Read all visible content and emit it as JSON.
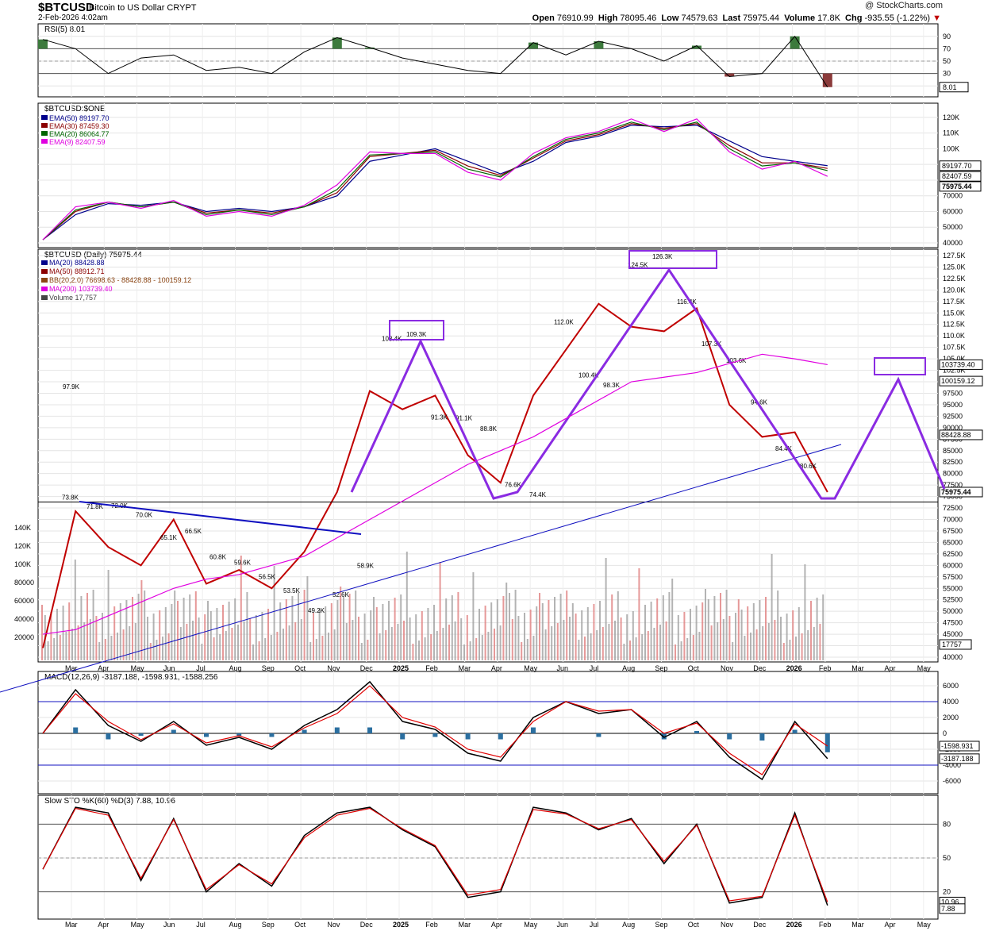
{
  "header": {
    "symbol": "$BTCUSD",
    "name": "Bitcoin to US Dollar  CRYPT",
    "timestamp": "2-Feb-2026 4:02am",
    "watermark": "@ StockCharts.com",
    "open_label": "Open",
    "open": "76910.99",
    "high_label": "High",
    "high": "78095.46",
    "low_label": "Low",
    "low": "74579.63",
    "last_label": "Last",
    "last": "75975.44",
    "volume_label": "Volume",
    "volume": "17.8K",
    "chg_label": "Chg",
    "chg": "-935.55 (-1.22%)",
    "chg_arrow": "▼"
  },
  "colors": {
    "price_up": "#000000",
    "price_down": "#c00000",
    "ema50": "#00008b",
    "ema30": "#8b0000",
    "ema20": "#006400",
    "ema9": "#e000e0",
    "ma200": "#e000e0",
    "trend": "#1010c0",
    "pattern": "#8a2be2",
    "macd": "#000000",
    "signal": "#e00000",
    "hist": "#2b6fa0",
    "rsi_fill_hi": "#3c7a3c",
    "rsi_fill_lo": "#8b3a3a",
    "volume_up": "#a0a0a0",
    "volume_down": "#e08080",
    "bb_fill": "#f0ebe0"
  },
  "chart_data": [
    {
      "type": "line",
      "panel": "rsi",
      "title": "RSI(5) 8.01",
      "ylim": [
        0,
        100
      ],
      "ticks": [
        "90",
        "70",
        "50",
        "30",
        "10"
      ],
      "last_value": "8.01",
      "x": [
        "Feb 2024",
        "Mar 2024",
        "Apr 2024",
        "May 2024",
        "Jun 2024",
        "Jul 2024",
        "Aug 2024",
        "Sep 2024",
        "Oct 2024",
        "Nov 2024",
        "Dec 2024",
        "Jan 2025",
        "Feb 2025",
        "Mar 2025",
        "Apr 2025",
        "May 2025",
        "Jun 2025",
        "Jul 2025",
        "Aug 2025",
        "Sep 2025",
        "Oct 2025",
        "Nov 2025",
        "Dec 2025",
        "Jan 2026",
        "Feb 2026"
      ],
      "values": [
        85,
        70,
        30,
        55,
        60,
        35,
        40,
        30,
        65,
        88,
        72,
        55,
        45,
        35,
        30,
        80,
        60,
        82,
        70,
        50,
        75,
        25,
        30,
        90,
        8
      ]
    },
    {
      "type": "line",
      "panel": "ema",
      "title": "$BTCUSD:$ONE",
      "ylim": [
        40000,
        125000
      ],
      "ticks": [
        "120K",
        "110K",
        "100K",
        "90000",
        "80000",
        "70000",
        "60000",
        "50000",
        "40000"
      ],
      "series": [
        {
          "name": "EMA(50) 89197.70",
          "values": [
            42000,
            58000,
            65000,
            64000,
            66000,
            60000,
            62000,
            60000,
            63000,
            70000,
            92000,
            96000,
            100000,
            92000,
            84000,
            92000,
            104000,
            108000,
            115000,
            114000,
            115000,
            105000,
            95000,
            92000,
            89197.7
          ]
        },
        {
          "name": "EMA(30) 87459.30",
          "values": [
            42000,
            60000,
            66000,
            63000,
            66000,
            59000,
            61000,
            59000,
            63000,
            72000,
            95000,
            97000,
            99000,
            89000,
            83000,
            94000,
            105000,
            109000,
            116000,
            113000,
            116000,
            102000,
            91000,
            91000,
            87459.3
          ]
        },
        {
          "name": "EMA(20) 86064.77",
          "values": [
            42000,
            61000,
            66000,
            63000,
            66000,
            58000,
            61000,
            58000,
            63000,
            74000,
            96000,
            97000,
            98000,
            87000,
            82000,
            95000,
            106000,
            110000,
            117000,
            112000,
            117000,
            100000,
            89000,
            91000,
            86064.77
          ]
        },
        {
          "name": "EMA(9) 82407.59",
          "values": [
            42000,
            63000,
            66000,
            62000,
            67000,
            57000,
            60000,
            57000,
            64000,
            77000,
            98000,
            97000,
            97000,
            85000,
            80000,
            97000,
            107000,
            111000,
            119000,
            111000,
            119000,
            98000,
            87000,
            92000,
            82407.59
          ]
        }
      ],
      "last_labels": [
        "89197.70",
        "82407.59",
        "75975.44"
      ]
    },
    {
      "type": "line",
      "panel": "price",
      "title": "$BTCUSD (Daily) 75975.44",
      "legend": [
        "MA(20) 88428.88",
        "MA(50) 88912.71",
        "BB(20,2.0) 76698.63 - 88428.88 - 100159.12",
        "MA(200) 103739.40",
        "Volume 17,757"
      ],
      "ylim": [
        40000,
        127500
      ],
      "ticks": [
        "127.5K",
        "125.0K",
        "122.5K",
        "120.0K",
        "117.5K",
        "115.0K",
        "112.5K",
        "110.0K",
        "107.5K",
        "105.0K",
        "102.5K",
        "100.0K",
        "97500",
        "95000",
        "92500",
        "90000",
        "87500",
        "85000",
        "82500",
        "80000",
        "77500",
        "75000",
        "72500",
        "70000",
        "67500",
        "65000",
        "62500",
        "60000",
        "57500",
        "55000",
        "52500",
        "50000",
        "47500",
        "45000",
        "42500",
        "40000"
      ],
      "volume_ticks": [
        "140K",
        "120K",
        "100K",
        "80000",
        "60000",
        "40000",
        "20000"
      ],
      "x": [
        "Feb 2024",
        "Mar 2024",
        "Apr 2024",
        "May 2024",
        "Jun 2024",
        "Jul 2024",
        "Aug 2024",
        "Sep 2024",
        "Oct 2024",
        "Nov 2024",
        "Dec 2024",
        "Jan 2025",
        "Feb 2025",
        "Mar 2025",
        "Apr 2025",
        "May 2025",
        "Jun 2025",
        "Jul 2025",
        "Aug 2025",
        "Sep 2025",
        "Oct 2025",
        "Nov 2025",
        "Dec 2025",
        "Jan 2026",
        "Feb 2026"
      ],
      "close": [
        42000,
        71800,
        64000,
        60000,
        70000,
        56000,
        59000,
        55000,
        63000,
        76000,
        98000,
        94000,
        97000,
        84000,
        78000,
        97000,
        107000,
        117000,
        112000,
        111000,
        116000,
        95000,
        88000,
        89000,
        75975.44
      ],
      "annotations": [
        "73.8K",
        "71.8K",
        "72.0K",
        "70.0K",
        "65.1K",
        "66.5K",
        "60.8K",
        "59.6K",
        "56.5K",
        "53.5K",
        "49.2K",
        "52.6K",
        "58.9K",
        "108.4K",
        "109.3K",
        "91.3K",
        "91.1K",
        "88.8K",
        "76.6K",
        "74.4K",
        "112.0K",
        "100.4K",
        "98.3K",
        "124.5K",
        "126.3K",
        "116.4K",
        "107.3K",
        "103.6K",
        "94.6K",
        "84.4K",
        "80.6K",
        "97.9K"
      ],
      "last_labels": [
        "103739.40",
        "100159.12",
        "88428.88",
        "75975.44",
        "17757"
      ],
      "xaxis_labels": [
        "Mar",
        "Apr",
        "May",
        "Jun",
        "Jul",
        "Aug",
        "Sep",
        "Oct",
        "Nov",
        "Dec",
        "2025",
        "Feb",
        "Mar",
        "Apr",
        "May",
        "Jun",
        "Jul",
        "Aug",
        "Sep",
        "Oct",
        "Nov",
        "Dec",
        "2026",
        "Feb",
        "Mar",
        "Apr",
        "May"
      ]
    },
    {
      "type": "line",
      "panel": "macd",
      "title": "MACD(12,26,9) -3187.188, -1598.931, -1588.256",
      "ylim": [
        -7000,
        7000
      ],
      "ticks": [
        "6000",
        "4000",
        "2000",
        "0",
        "-2000",
        "-4000",
        "-6000"
      ],
      "series": [
        {
          "name": "MACD",
          "values": [
            0,
            5500,
            1000,
            -1000,
            1500,
            -1500,
            -500,
            -2000,
            1000,
            3000,
            6500,
            1500,
            500,
            -2500,
            -3500,
            2000,
            4000,
            2500,
            3000,
            -500,
            1500,
            -3000,
            -5800,
            1500,
            -3187.188
          ]
        },
        {
          "name": "Signal",
          "values": [
            0,
            5000,
            1500,
            -800,
            1200,
            -1200,
            -300,
            -1700,
            700,
            2500,
            6000,
            2000,
            800,
            -2000,
            -3000,
            1500,
            4000,
            2800,
            3000,
            0,
            1300,
            -2500,
            -5200,
            1200,
            -1598.931
          ]
        }
      ],
      "last_labels": [
        "-1598.931",
        "-3187.188"
      ]
    },
    {
      "type": "line",
      "panel": "sto",
      "title": "Slow STO %K(60) %D(3) 7.88, 10.96",
      "ylim": [
        0,
        100
      ],
      "ticks": [
        "80",
        "50",
        "20"
      ],
      "series": [
        {
          "name": "%K",
          "values": [
            40,
            95,
            90,
            30,
            85,
            20,
            45,
            25,
            70,
            90,
            95,
            75,
            60,
            15,
            20,
            95,
            90,
            75,
            85,
            45,
            80,
            10,
            15,
            90,
            7.88
          ]
        },
        {
          "name": "%D",
          "values": [
            40,
            94,
            88,
            32,
            84,
            22,
            44,
            27,
            68,
            88,
            94,
            76,
            61,
            17,
            22,
            93,
            89,
            76,
            84,
            47,
            79,
            12,
            16,
            88,
            10.96
          ]
        }
      ],
      "last_labels": [
        "10.96",
        "7.88"
      ]
    }
  ]
}
